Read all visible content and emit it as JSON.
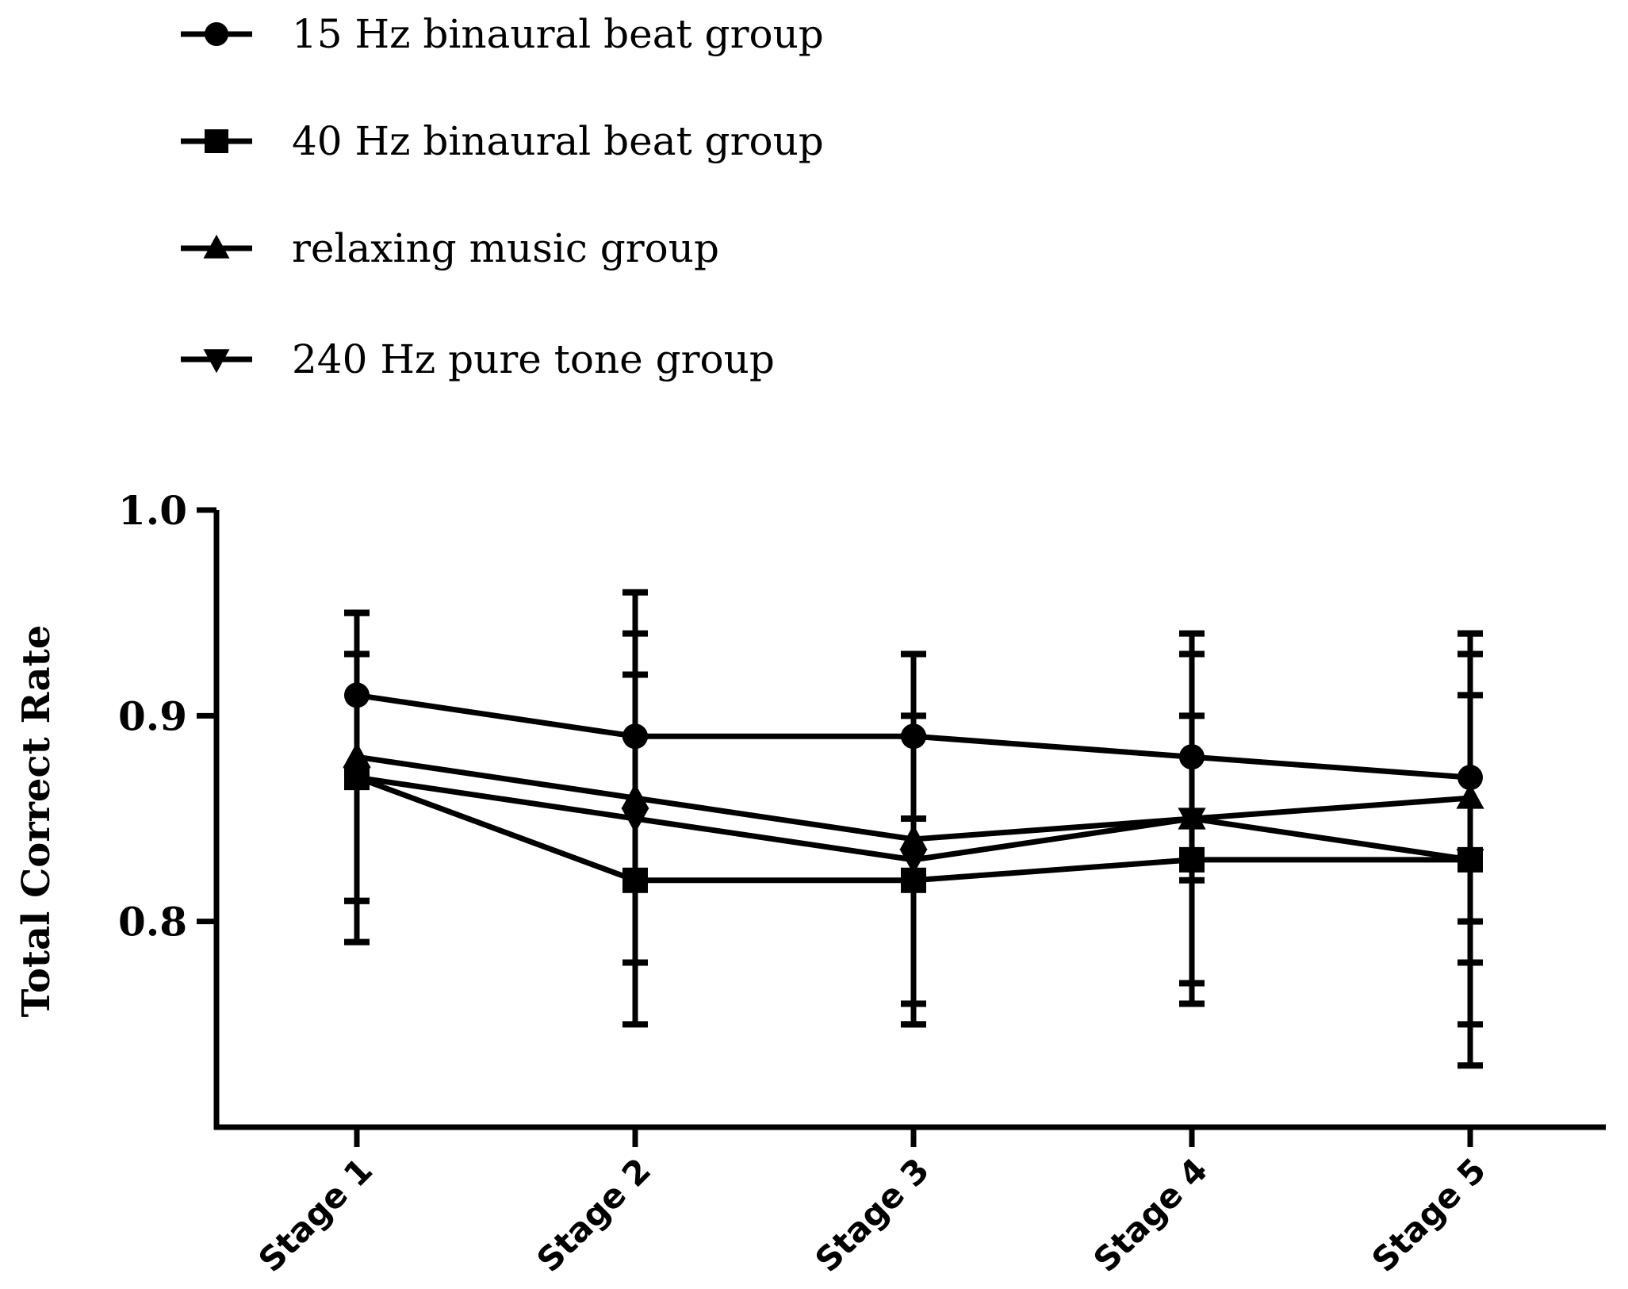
{
  "chart_data": {
    "type": "line",
    "title": "",
    "xlabel": "",
    "ylabel": "Total Correct Rate",
    "categories": [
      "Stage 1",
      "Stage 2",
      "Stage 3",
      "Stage 4",
      "Stage 5"
    ],
    "ylim": [
      0.7,
      1.0
    ],
    "yticks": [
      0.8,
      0.9,
      1.0
    ],
    "ytick_labels": [
      "0.8",
      "0.9",
      "1.0"
    ],
    "grid": false,
    "legend_position": "top-left",
    "series": [
      {
        "name": "15 Hz binaural beat group",
        "marker": "circle",
        "values": [
          0.91,
          0.89,
          0.89,
          0.88,
          0.87
        ],
        "error": [
          0.04,
          0.07,
          0.04,
          0.06,
          0.07
        ]
      },
      {
        "name": "40 Hz binaural beat group",
        "marker": "square",
        "values": [
          0.87,
          0.82,
          0.82,
          0.83,
          0.83
        ],
        "error": [
          0.06,
          0.07,
          0.07,
          0.07,
          0.08
        ]
      },
      {
        "name": "relaxing music group",
        "marker": "triangle-up",
        "values": [
          0.88,
          0.86,
          0.84,
          0.85,
          0.86
        ],
        "error": [
          0.07,
          0.08,
          0.09,
          0.08,
          0.08
        ]
      },
      {
        "name": "240 Hz pure tone group",
        "marker": "triangle-down",
        "values": [
          0.87,
          0.85,
          0.83,
          0.85,
          0.83
        ],
        "error": [
          0.08,
          0.07,
          0.07,
          0.08,
          0.1
        ]
      }
    ]
  }
}
